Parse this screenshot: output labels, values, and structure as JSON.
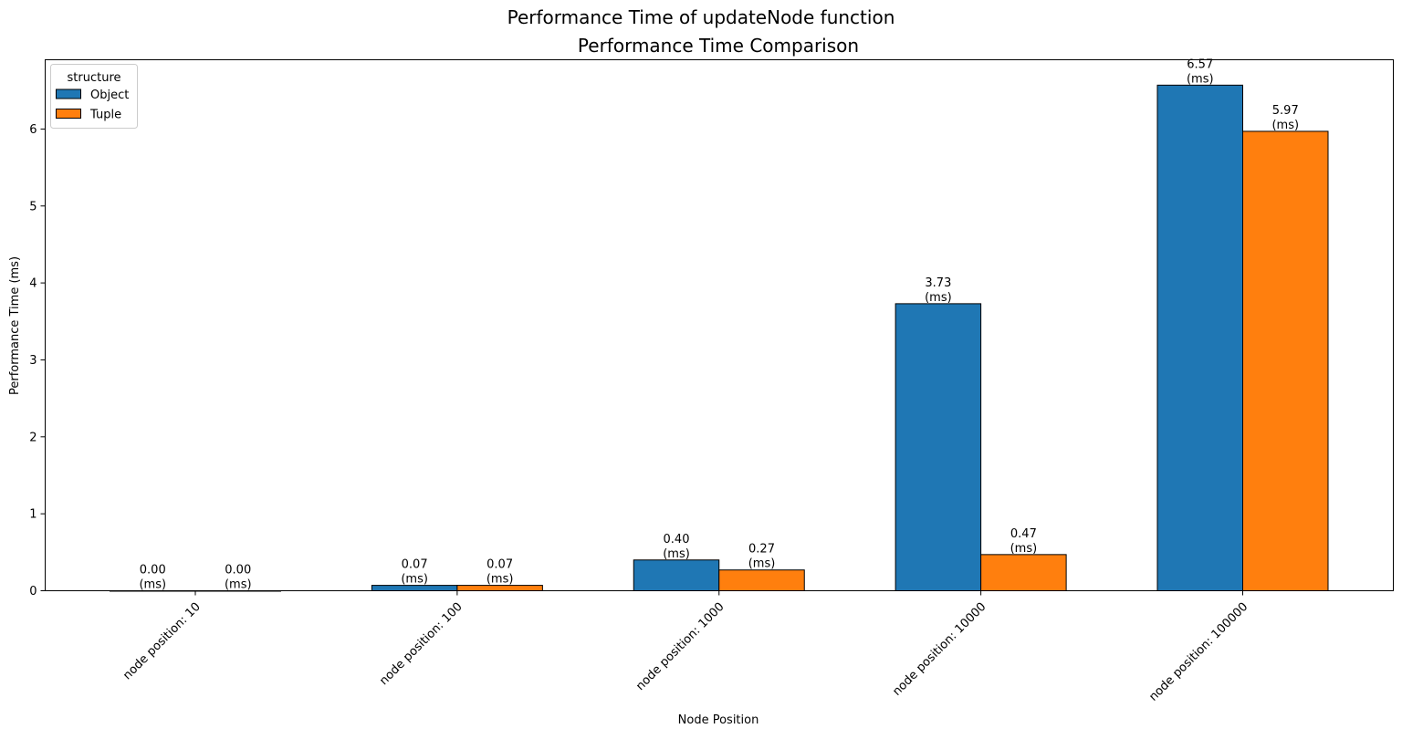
{
  "figure": {
    "suptitle": "Performance Time of updateNode function"
  },
  "chart_data": {
    "type": "bar",
    "title": "Performance Time Comparison",
    "xlabel": "Node Position",
    "ylabel": "Performance Time (ms)",
    "categories": [
      "node position: 10",
      "node position: 100",
      "node position: 1000",
      "node position: 10000",
      "node position: 100000"
    ],
    "series": [
      {
        "name": "Object",
        "values": [
          0.0,
          0.07,
          0.4,
          3.73,
          6.57
        ],
        "color": "#1f77b4"
      },
      {
        "name": "Tuple",
        "values": [
          0.0,
          0.07,
          0.27,
          0.47,
          5.97
        ],
        "color": "#ff7f0e"
      }
    ],
    "bar_labels": [
      [
        "0.00\n(ms)",
        "0.07\n(ms)",
        "0.40\n(ms)",
        "3.73\n(ms)",
        "6.57\n(ms)"
      ],
      [
        "0.00\n(ms)",
        "0.07\n(ms)",
        "0.27\n(ms)",
        "0.47\n(ms)",
        "5.97\n(ms)"
      ]
    ],
    "yticks": [
      "0",
      "1",
      "2",
      "3",
      "4",
      "5",
      "6"
    ],
    "ylim": [
      0,
      6.9
    ],
    "grid": false,
    "legend": {
      "title": "structure",
      "placement": "top-left"
    },
    "xtick_rotation": 45
  }
}
